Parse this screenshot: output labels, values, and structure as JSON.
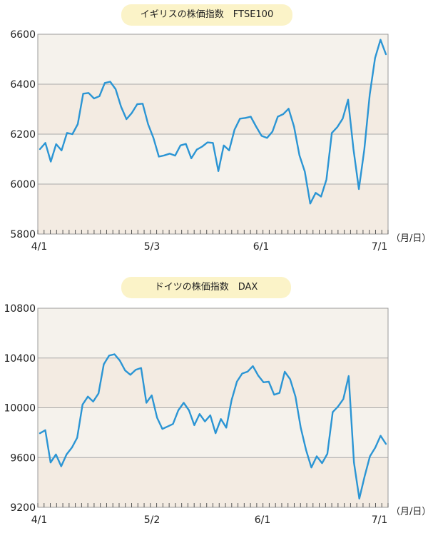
{
  "chart_data": [
    {
      "type": "line",
      "title": "イギリスの株価指数　FTSE100",
      "unit_label": "（月/日）",
      "ylim": [
        5800,
        6600
      ],
      "yticks": [
        5800,
        6000,
        6200,
        6400,
        6600
      ],
      "xticks": [
        "4/1",
        "5/3",
        "6/1",
        "7/1"
      ],
      "grid": true,
      "line_color": "#2b95d4",
      "band_colors": [
        "#f3ebe2",
        "#f5f2ec"
      ],
      "series": [
        {
          "values": [
            6140,
            6165,
            6090,
            6160,
            6135,
            6205,
            6200,
            6240,
            6362,
            6365,
            6343,
            6352,
            6405,
            6410,
            6380,
            6310,
            6260,
            6285,
            6320,
            6322,
            6240,
            6185,
            6110,
            6115,
            6122,
            6114,
            6155,
            6161,
            6103,
            6138,
            6150,
            6167,
            6165,
            6052,
            6155,
            6135,
            6218,
            6262,
            6265,
            6270,
            6230,
            6193,
            6185,
            6210,
            6270,
            6280,
            6302,
            6230,
            6115,
            6050,
            5922,
            5965,
            5950,
            6018,
            6205,
            6228,
            6262,
            6338,
            6140,
            5980,
            6138,
            6358,
            6505,
            6578,
            6520
          ]
        }
      ]
    },
    {
      "type": "line",
      "title": "ドイツの株価指数　DAX",
      "unit_label": "（月/日）",
      "ylim": [
        9200,
        10800
      ],
      "yticks": [
        9200,
        9600,
        10000,
        10400,
        10800
      ],
      "xticks": [
        "4/1",
        "5/2",
        "6/1",
        "7/1"
      ],
      "grid": true,
      "line_color": "#2b95d4",
      "band_colors": [
        "#f3ebe2",
        "#f5f2ec"
      ],
      "series": [
        {
          "values": [
            9795,
            9820,
            9560,
            9625,
            9530,
            9625,
            9680,
            9760,
            10025,
            10090,
            10050,
            10115,
            10350,
            10420,
            10430,
            10380,
            10300,
            10265,
            10305,
            10320,
            10040,
            10100,
            9920,
            9830,
            9850,
            9870,
            9980,
            10040,
            9980,
            9860,
            9950,
            9890,
            9940,
            9795,
            9910,
            9840,
            10060,
            10210,
            10275,
            10290,
            10335,
            10260,
            10205,
            10210,
            10105,
            10120,
            10290,
            10230,
            10090,
            9840,
            9660,
            9520,
            9610,
            9555,
            9630,
            9965,
            10010,
            10070,
            10255,
            9560,
            9270,
            9450,
            9610,
            9680,
            9775,
            9710
          ]
        }
      ]
    }
  ]
}
